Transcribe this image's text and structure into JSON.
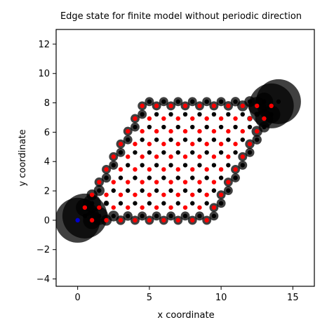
{
  "chart_data": {
    "type": "scatter",
    "title": "Edge state for finite model without periodic direction",
    "xlabel": "x coordinate",
    "ylabel": "y coordinate",
    "xlim": [
      -1.5,
      16.5
    ],
    "ylim": [
      -4.5,
      13.0
    ],
    "xticks": [
      0,
      5,
      10,
      15
    ],
    "yticks": [
      -4,
      -2,
      0,
      2,
      4,
      6,
      8,
      10,
      12
    ],
    "lattice": {
      "a1": [
        1.0,
        0.0
      ],
      "a2": [
        0.5,
        0.866
      ],
      "basis": [
        [
          0.0,
          0.0
        ],
        [
          0.5,
          0.289
        ]
      ],
      "n1": 10,
      "n2": 10,
      "site_colors": [
        "#ff0000",
        "#000000"
      ]
    },
    "edge_state": {
      "circle_color": "#000000",
      "circle_alpha": 0.75,
      "highlighted_site": [
        0.0,
        0.0
      ],
      "highlight_color": "#0000cc"
    },
    "grid": false,
    "legend": "none"
  }
}
